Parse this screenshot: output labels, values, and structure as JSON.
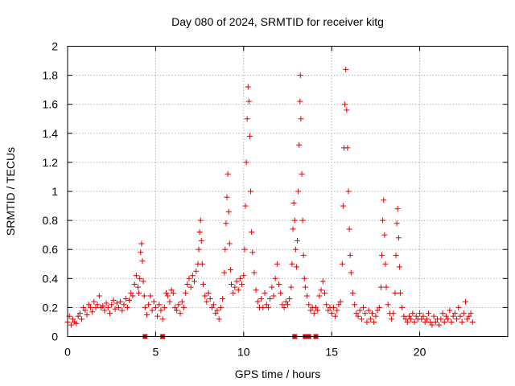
{
  "chart_data": {
    "type": "scatter",
    "title": "Day 080 of 2024, SRMTID for receiver kitg",
    "xlabel": "GPS time / hours",
    "ylabel": "SRMTID / TECUs",
    "xlim": [
      0,
      25
    ],
    "ylim": [
      0,
      2
    ],
    "x_ticks": [
      0,
      5,
      10,
      15,
      20
    ],
    "x_tick_labels": [
      "0",
      "5",
      "10",
      "15",
      "20"
    ],
    "y_ticks": [
      0,
      0.2,
      0.4,
      0.6,
      0.8,
      1.0,
      1.2,
      1.4,
      1.6,
      1.8,
      2.0
    ],
    "y_tick_labels": [
      "0",
      "0.2",
      "0.4",
      "0.6",
      "0.8",
      "1",
      "1.2",
      "1.4",
      "1.6",
      "1.8",
      "2"
    ],
    "grid": true,
    "marker": "plus",
    "color": "#e00000",
    "series": [
      {
        "name": "SRMTID",
        "points": [
          [
            0.0,
            0.1
          ],
          [
            0.1,
            0.14
          ],
          [
            0.2,
            0.08
          ],
          [
            0.3,
            0.12
          ],
          [
            0.4,
            0.1
          ],
          [
            0.5,
            0.09
          ],
          [
            0.6,
            0.14
          ],
          [
            0.7,
            0.16
          ],
          [
            0.8,
            0.12
          ],
          [
            0.9,
            0.2
          ],
          [
            1.0,
            0.18
          ],
          [
            1.1,
            0.15
          ],
          [
            1.2,
            0.22
          ],
          [
            1.3,
            0.2
          ],
          [
            1.4,
            0.17
          ],
          [
            1.5,
            0.24
          ],
          [
            1.6,
            0.2
          ],
          [
            1.7,
            0.22
          ],
          [
            1.8,
            0.28
          ],
          [
            1.9,
            0.2
          ],
          [
            2.0,
            0.21
          ],
          [
            2.1,
            0.18
          ],
          [
            2.2,
            0.23
          ],
          [
            2.3,
            0.2
          ],
          [
            2.4,
            0.16
          ],
          [
            2.5,
            0.22
          ],
          [
            2.6,
            0.25
          ],
          [
            2.7,
            0.19
          ],
          [
            2.8,
            0.23
          ],
          [
            2.9,
            0.2
          ],
          [
            3.0,
            0.24
          ],
          [
            3.1,
            0.18
          ],
          [
            3.2,
            0.22
          ],
          [
            3.3,
            0.26
          ],
          [
            3.4,
            0.2
          ],
          [
            3.5,
            0.25
          ],
          [
            3.6,
            0.3
          ],
          [
            3.7,
            0.28
          ],
          [
            3.8,
            0.36
          ],
          [
            3.9,
            0.42
          ],
          [
            4.0,
            0.34
          ],
          [
            4.05,
            0.3
          ],
          [
            4.1,
            0.4
          ],
          [
            4.15,
            0.58
          ],
          [
            4.2,
            0.64
          ],
          [
            4.25,
            0.52
          ],
          [
            4.3,
            0.38
          ],
          [
            4.35,
            0.28
          ],
          [
            4.4,
            0.2
          ],
          [
            4.5,
            0.15
          ],
          [
            4.6,
            0.22
          ],
          [
            4.7,
            0.28
          ],
          [
            4.8,
            0.18
          ],
          [
            4.9,
            0.24
          ],
          [
            5.0,
            0.2
          ],
          [
            5.1,
            0.14
          ],
          [
            5.2,
            0.22
          ],
          [
            5.3,
            0.18
          ],
          [
            5.4,
            0.12
          ],
          [
            5.5,
            0.2
          ],
          [
            5.6,
            0.3
          ],
          [
            5.7,
            0.28
          ],
          [
            5.8,
            0.24
          ],
          [
            5.9,
            0.32
          ],
          [
            6.0,
            0.3
          ],
          [
            6.1,
            0.2
          ],
          [
            6.2,
            0.18
          ],
          [
            6.3,
            0.22
          ],
          [
            6.4,
            0.16
          ],
          [
            6.5,
            0.24
          ],
          [
            6.6,
            0.2
          ],
          [
            6.7,
            0.3
          ],
          [
            6.8,
            0.36
          ],
          [
            6.9,
            0.4
          ],
          [
            7.0,
            0.34
          ],
          [
            7.1,
            0.42
          ],
          [
            7.2,
            0.38
          ],
          [
            7.3,
            0.45
          ],
          [
            7.4,
            0.5
          ],
          [
            7.45,
            0.6
          ],
          [
            7.5,
            0.72
          ],
          [
            7.55,
            0.8
          ],
          [
            7.6,
            0.66
          ],
          [
            7.65,
            0.5
          ],
          [
            7.7,
            0.36
          ],
          [
            7.8,
            0.28
          ],
          [
            7.9,
            0.24
          ],
          [
            8.0,
            0.3
          ],
          [
            8.1,
            0.26
          ],
          [
            8.2,
            0.2
          ],
          [
            8.3,
            0.22
          ],
          [
            8.4,
            0.16
          ],
          [
            8.5,
            0.18
          ],
          [
            8.6,
            0.12
          ],
          [
            8.7,
            0.2
          ],
          [
            8.8,
            0.26
          ],
          [
            8.9,
            0.44
          ],
          [
            8.95,
            0.6
          ],
          [
            9.0,
            0.78
          ],
          [
            9.05,
            0.96
          ],
          [
            9.1,
            1.12
          ],
          [
            9.15,
            0.86
          ],
          [
            9.2,
            0.64
          ],
          [
            9.25,
            0.46
          ],
          [
            9.3,
            0.36
          ],
          [
            9.4,
            0.3
          ],
          [
            9.5,
            0.34
          ],
          [
            9.6,
            0.38
          ],
          [
            9.7,
            0.32
          ],
          [
            9.8,
            0.4
          ],
          [
            9.9,
            0.36
          ],
          [
            10.0,
            0.42
          ],
          [
            10.05,
            0.6
          ],
          [
            10.1,
            0.9
          ],
          [
            10.15,
            1.2
          ],
          [
            10.2,
            1.5
          ],
          [
            10.25,
            1.72
          ],
          [
            10.3,
            1.62
          ],
          [
            10.35,
            1.38
          ],
          [
            10.4,
            1.0
          ],
          [
            10.45,
            0.72
          ],
          [
            10.5,
            0.58
          ],
          [
            10.6,
            0.44
          ],
          [
            10.7,
            0.32
          ],
          [
            10.8,
            0.24
          ],
          [
            10.9,
            0.2
          ],
          [
            11.0,
            0.26
          ],
          [
            11.1,
            0.2
          ],
          [
            11.2,
            0.3
          ],
          [
            11.3,
            0.22
          ],
          [
            11.4,
            0.2
          ],
          [
            11.5,
            0.26
          ],
          [
            11.6,
            0.34
          ],
          [
            11.7,
            0.28
          ],
          [
            11.8,
            0.4
          ],
          [
            11.9,
            0.5
          ],
          [
            12.0,
            0.36
          ],
          [
            12.1,
            0.3
          ],
          [
            12.2,
            0.22
          ],
          [
            12.3,
            0.2
          ],
          [
            12.4,
            0.24
          ],
          [
            12.5,
            0.22
          ],
          [
            12.6,
            0.26
          ],
          [
            12.7,
            0.34
          ],
          [
            12.75,
            0.5
          ],
          [
            12.8,
            0.74
          ],
          [
            12.85,
            0.92
          ],
          [
            12.9,
            0.8
          ],
          [
            12.95,
            0.6
          ],
          [
            13.0,
            0.48
          ],
          [
            13.05,
            0.66
          ],
          [
            13.1,
            1.0
          ],
          [
            13.15,
            1.32
          ],
          [
            13.2,
            1.62
          ],
          [
            13.22,
            1.8
          ],
          [
            13.25,
            1.5
          ],
          [
            13.3,
            1.12
          ],
          [
            13.35,
            0.8
          ],
          [
            13.4,
            0.56
          ],
          [
            13.45,
            0.4
          ],
          [
            13.5,
            0.34
          ],
          [
            13.6,
            0.28
          ],
          [
            13.7,
            0.22
          ],
          [
            13.8,
            0.18
          ],
          [
            13.9,
            0.2
          ],
          [
            14.0,
            0.16
          ],
          [
            14.1,
            0.2
          ],
          [
            14.2,
            0.18
          ],
          [
            14.3,
            0.28
          ],
          [
            14.4,
            0.32
          ],
          [
            14.5,
            0.38
          ],
          [
            14.6,
            0.3
          ],
          [
            14.7,
            0.22
          ],
          [
            14.8,
            0.18
          ],
          [
            14.9,
            0.2
          ],
          [
            15.0,
            0.16
          ],
          [
            15.1,
            0.2
          ],
          [
            15.2,
            0.14
          ],
          [
            15.3,
            0.18
          ],
          [
            15.4,
            0.22
          ],
          [
            15.5,
            0.24
          ],
          [
            15.6,
            0.5
          ],
          [
            15.65,
            0.9
          ],
          [
            15.7,
            1.3
          ],
          [
            15.75,
            1.6
          ],
          [
            15.8,
            1.84
          ],
          [
            15.85,
            1.56
          ],
          [
            15.9,
            1.3
          ],
          [
            15.95,
            1.0
          ],
          [
            16.0,
            0.74
          ],
          [
            16.05,
            0.56
          ],
          [
            16.1,
            0.44
          ],
          [
            16.2,
            0.3
          ],
          [
            16.3,
            0.22
          ],
          [
            16.4,
            0.16
          ],
          [
            16.5,
            0.14
          ],
          [
            16.6,
            0.18
          ],
          [
            16.7,
            0.12
          ],
          [
            16.8,
            0.2
          ],
          [
            16.9,
            0.16
          ],
          [
            17.0,
            0.1
          ],
          [
            17.1,
            0.18
          ],
          [
            17.2,
            0.12
          ],
          [
            17.3,
            0.16
          ],
          [
            17.4,
            0.1
          ],
          [
            17.5,
            0.14
          ],
          [
            17.6,
            0.18
          ],
          [
            17.7,
            0.2
          ],
          [
            17.8,
            0.34
          ],
          [
            17.85,
            0.56
          ],
          [
            17.9,
            0.8
          ],
          [
            17.95,
            0.94
          ],
          [
            18.0,
            0.7
          ],
          [
            18.05,
            0.5
          ],
          [
            18.1,
            0.34
          ],
          [
            18.2,
            0.22
          ],
          [
            18.3,
            0.16
          ],
          [
            18.4,
            0.12
          ],
          [
            18.5,
            0.16
          ],
          [
            18.6,
            0.3
          ],
          [
            18.65,
            0.56
          ],
          [
            18.7,
            0.78
          ],
          [
            18.75,
            0.88
          ],
          [
            18.8,
            0.68
          ],
          [
            18.85,
            0.48
          ],
          [
            18.9,
            0.3
          ],
          [
            19.0,
            0.2
          ],
          [
            19.1,
            0.14
          ],
          [
            19.2,
            0.12
          ],
          [
            19.3,
            0.1
          ],
          [
            19.4,
            0.14
          ],
          [
            19.5,
            0.12
          ],
          [
            19.6,
            0.16
          ],
          [
            19.7,
            0.1
          ],
          [
            19.8,
            0.14
          ],
          [
            19.9,
            0.12
          ],
          [
            20.0,
            0.16
          ],
          [
            20.1,
            0.12
          ],
          [
            20.2,
            0.14
          ],
          [
            20.3,
            0.1
          ],
          [
            20.4,
            0.12
          ],
          [
            20.5,
            0.16
          ],
          [
            20.6,
            0.1
          ],
          [
            20.7,
            0.08
          ],
          [
            20.8,
            0.14
          ],
          [
            20.9,
            0.1
          ],
          [
            21.0,
            0.12
          ],
          [
            21.1,
            0.08
          ],
          [
            21.2,
            0.12
          ],
          [
            21.3,
            0.16
          ],
          [
            21.4,
            0.1
          ],
          [
            21.5,
            0.14
          ],
          [
            21.6,
            0.12
          ],
          [
            21.7,
            0.18
          ],
          [
            21.8,
            0.1
          ],
          [
            21.9,
            0.14
          ],
          [
            22.0,
            0.16
          ],
          [
            22.1,
            0.12
          ],
          [
            22.2,
            0.2
          ],
          [
            22.3,
            0.14
          ],
          [
            22.4,
            0.1
          ],
          [
            22.5,
            0.16
          ],
          [
            22.6,
            0.24
          ],
          [
            22.7,
            0.12
          ],
          [
            22.8,
            0.14
          ],
          [
            22.9,
            0.16
          ],
          [
            23.0,
            0.1
          ]
        ],
        "zero_points": [
          4.4,
          5.4,
          12.9,
          13.5,
          13.7,
          14.1
        ]
      }
    ]
  }
}
